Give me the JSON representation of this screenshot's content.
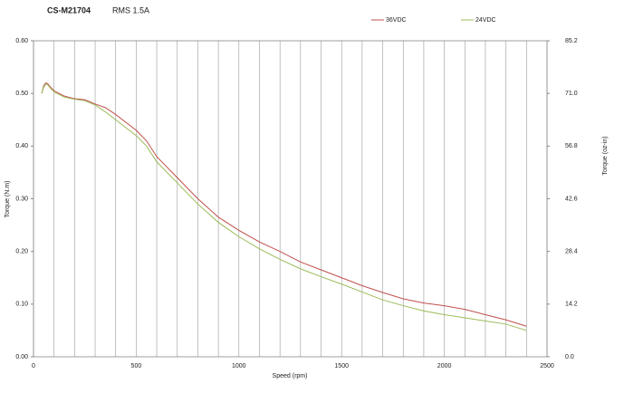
{
  "chart_data": {
    "type": "line",
    "title": "CS-M21704",
    "subtitle": "RMS 1.5A",
    "x_label": "Speed (rpm)",
    "y_label": "Torque (N.m)",
    "y2_label": "Torque (oz-in)",
    "x": [
      40,
      50,
      60,
      70,
      80,
      100,
      150,
      200,
      250,
      300,
      350,
      400,
      500,
      550,
      600,
      700,
      800,
      900,
      1000,
      1100,
      1200,
      1300,
      1400,
      1500,
      1600,
      1700,
      1800,
      1900,
      2000,
      2100,
      2200,
      2300,
      2400
    ],
    "series": [
      {
        "name": "36VDC",
        "color": "#c0504d",
        "values": [
          0.5,
          0.515,
          0.52,
          0.518,
          0.513,
          0.505,
          0.495,
          0.49,
          0.488,
          0.48,
          0.473,
          0.46,
          0.43,
          0.41,
          0.38,
          0.34,
          0.3,
          0.265,
          0.24,
          0.218,
          0.2,
          0.18,
          0.165,
          0.15,
          0.135,
          0.122,
          0.11,
          0.102,
          0.097,
          0.09,
          0.08,
          0.07,
          0.058
        ]
      },
      {
        "name": "24VDC",
        "color": "#9bbb59",
        "values": [
          0.5,
          0.512,
          0.518,
          0.516,
          0.511,
          0.503,
          0.493,
          0.489,
          0.486,
          0.478,
          0.465,
          0.45,
          0.42,
          0.4,
          0.37,
          0.33,
          0.29,
          0.255,
          0.228,
          0.205,
          0.185,
          0.167,
          0.152,
          0.138,
          0.123,
          0.108,
          0.097,
          0.087,
          0.08,
          0.074,
          0.068,
          0.062,
          0.05
        ]
      }
    ],
    "xlim": [
      0,
      2500
    ],
    "xticks": [
      0,
      500,
      1000,
      1500,
      2000,
      2500
    ],
    "x_minor_ticks": [
      100,
      200,
      300,
      400,
      600,
      700,
      800,
      900,
      1100,
      1200,
      1300,
      1400,
      1600,
      1700,
      1800,
      1900,
      2100,
      2200,
      2300,
      2400
    ],
    "ylim": [
      0,
      0.6
    ],
    "yticks": [
      {
        "value": 0,
        "label": "0.00"
      },
      {
        "value": 0.1,
        "label": "0.10"
      },
      {
        "value": 0.2,
        "label": "0.20"
      },
      {
        "value": 0.3,
        "label": "0.30"
      },
      {
        "value": 0.4,
        "label": "0.40"
      },
      {
        "value": 0.5,
        "label": "0.50"
      },
      {
        "value": 0.6,
        "label": "0.60"
      }
    ],
    "y2lim": [
      0,
      85.2
    ],
    "y2ticks": [
      {
        "value": 0,
        "label": "0.0"
      },
      14.2,
      28.4,
      42.6,
      56.8,
      {
        "value": 71,
        "label": "71.0"
      },
      85.2
    ],
    "grid": true,
    "legend": "top"
  }
}
